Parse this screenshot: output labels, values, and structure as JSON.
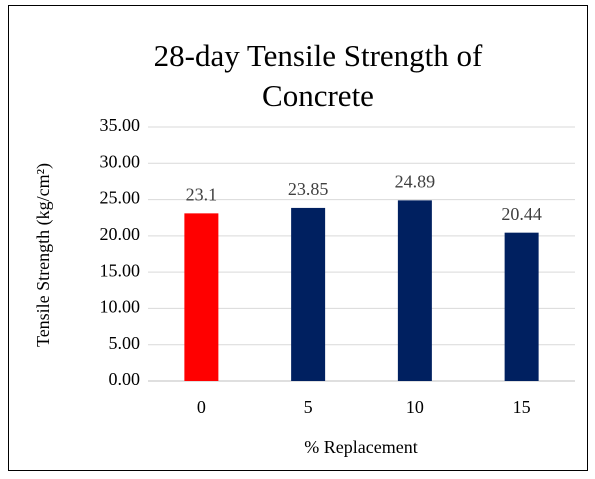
{
  "chart_data": {
    "type": "bar",
    "title": "28-day Tensile Strength of Concrete",
    "x_label": "% Replacement",
    "y_label": "Tensile Strength (kg/cm²)",
    "categories": [
      "0",
      "5",
      "10",
      "15"
    ],
    "values": [
      23.1,
      23.85,
      24.89,
      20.44
    ],
    "colors": [
      "#ff0000",
      "#002060",
      "#002060",
      "#002060"
    ],
    "ylim": [
      0,
      35
    ],
    "yticks": [
      {
        "value": 0,
        "label": "0.00"
      },
      {
        "value": 5,
        "label": "5.00"
      },
      {
        "value": 10,
        "label": "10.00"
      },
      {
        "value": 15,
        "label": "15.00"
      },
      {
        "value": 20,
        "label": "20.00"
      },
      {
        "value": 25,
        "label": "25.00"
      },
      {
        "value": 30,
        "label": "30.00"
      },
      {
        "value": 35,
        "label": "35.00"
      }
    ],
    "grid": true,
    "data_labels": true
  }
}
